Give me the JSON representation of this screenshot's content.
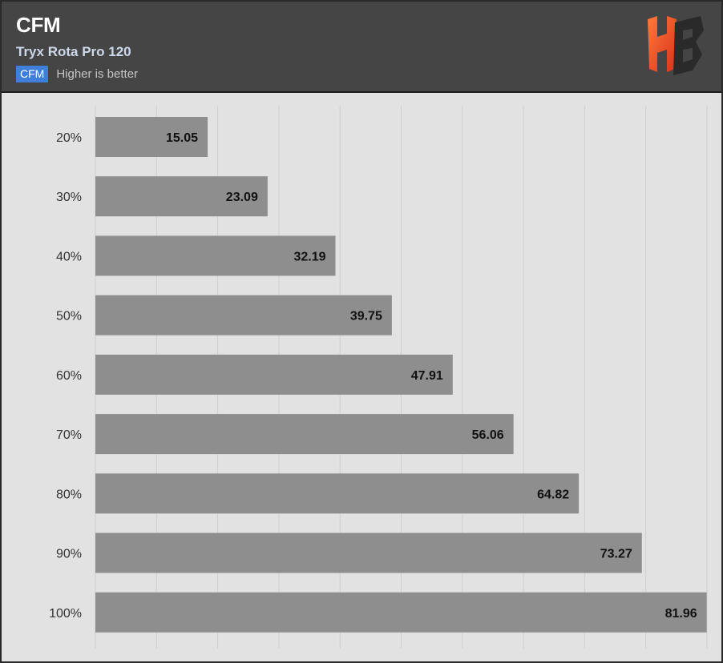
{
  "header": {
    "title": "CFM",
    "subtitle": "Tryx Rota Pro 120",
    "legend_label": "CFM",
    "legend_note": "Higher is better",
    "logo_text": "HB"
  },
  "colors": {
    "header_bg": "#454545",
    "plot_bg": "#e2e2e2",
    "bar": "#8e8e8e",
    "gridline": "#cfcfcf",
    "legend_accent": "#3f7fd9",
    "logo_red": "#e8431f",
    "logo_dark": "#2a2a2a"
  },
  "chart_data": {
    "type": "bar",
    "orientation": "horizontal",
    "title": "CFM",
    "subtitle": "Tryx Rota Pro 120",
    "categories": [
      "20%",
      "30%",
      "40%",
      "50%",
      "60%",
      "70%",
      "80%",
      "90%",
      "100%"
    ],
    "series": [
      {
        "name": "CFM",
        "values": [
          15.05,
          23.09,
          32.19,
          39.75,
          47.91,
          56.06,
          64.82,
          73.27,
          81.96
        ]
      }
    ],
    "xlim": [
      0,
      82
    ],
    "grid": true,
    "legend": "top-left"
  }
}
